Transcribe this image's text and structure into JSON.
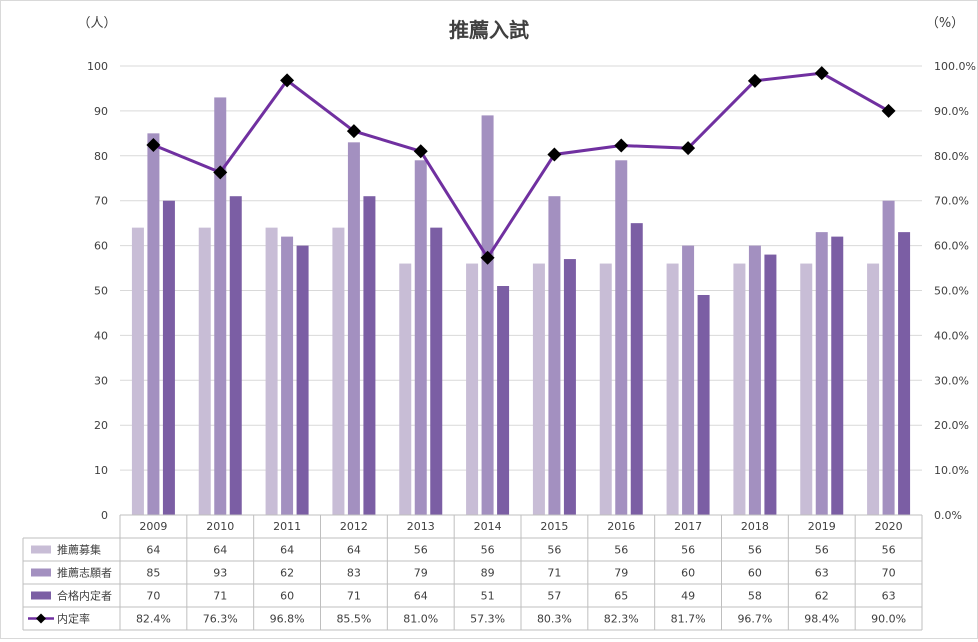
{
  "chart_data": {
    "type": "bar",
    "title": "推薦入試",
    "ylabel_left": "（人）",
    "ylabel_right": "（%）",
    "categories": [
      "2009",
      "2010",
      "2011",
      "2012",
      "2013",
      "2014",
      "2015",
      "2016",
      "2017",
      "2018",
      "2019",
      "2020"
    ],
    "ylim_left": [
      0,
      100
    ],
    "ylim_right": [
      0,
      100
    ],
    "yticks_left": [
      "0",
      "10",
      "20",
      "30",
      "40",
      "50",
      "60",
      "70",
      "80",
      "90",
      "100"
    ],
    "yticks_right": [
      "0.0%",
      "10.0%",
      "20.0%",
      "30.0%",
      "40.0%",
      "50.0%",
      "60.0%",
      "70.0%",
      "80.0%",
      "90.0%",
      "100.0%"
    ],
    "grid": true,
    "legend_placement": "data-table",
    "series": [
      {
        "name": "推薦募集",
        "type": "bar",
        "color": "#c8bdd6",
        "values": [
          64,
          64,
          64,
          64,
          56,
          56,
          56,
          56,
          56,
          56,
          56,
          56
        ],
        "labels": [
          "64",
          "64",
          "64",
          "64",
          "56",
          "56",
          "56",
          "56",
          "56",
          "56",
          "56",
          "56"
        ]
      },
      {
        "name": "推薦志願者",
        "type": "bar",
        "color": "#a390c0",
        "values": [
          85,
          93,
          62,
          83,
          79,
          89,
          71,
          79,
          60,
          60,
          63,
          70
        ],
        "labels": [
          "85",
          "93",
          "62",
          "83",
          "79",
          "89",
          "71",
          "79",
          "60",
          "60",
          "63",
          "70"
        ]
      },
      {
        "name": "合格内定者",
        "type": "bar",
        "color": "#7b5ea4",
        "values": [
          70,
          71,
          60,
          71,
          64,
          51,
          57,
          65,
          49,
          58,
          62,
          63
        ],
        "labels": [
          "70",
          "71",
          "60",
          "71",
          "64",
          "51",
          "57",
          "65",
          "49",
          "58",
          "62",
          "63"
        ]
      },
      {
        "name": "内定率",
        "type": "line",
        "axis": "right",
        "color": "#7030a0",
        "marker_color": "#000000",
        "values": [
          82.4,
          76.3,
          96.8,
          85.5,
          81.0,
          57.3,
          80.3,
          82.3,
          81.7,
          96.7,
          98.4,
          90.0
        ],
        "labels": [
          "82.4%",
          "76.3%",
          "96.8%",
          "85.5%",
          "81.0%",
          "57.3%",
          "80.3%",
          "82.3%",
          "81.7%",
          "96.7%",
          "98.4%",
          "90.0%"
        ]
      }
    ]
  }
}
